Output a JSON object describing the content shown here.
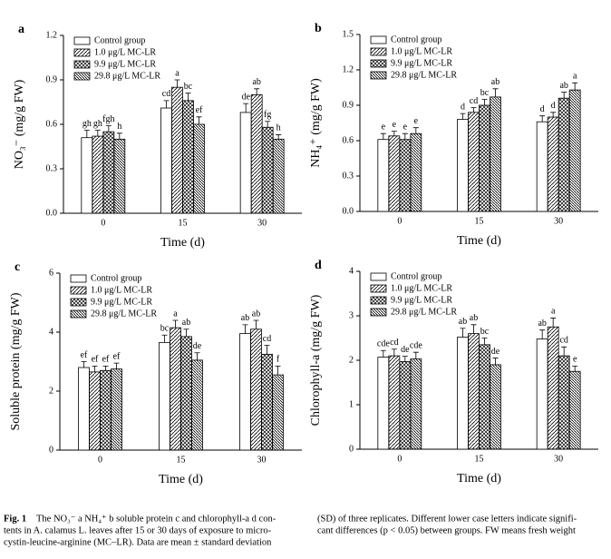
{
  "chart_data": [
    {
      "type": "bar",
      "panel": "a",
      "ylabel": "NO₃⁻ (mg/g FW)",
      "xlabel": "Time (d)",
      "categories": [
        "0",
        "15",
        "30"
      ],
      "ylim": [
        0,
        1.2
      ],
      "yticks": [
        {
          "value": 0,
          "label": "0.0"
        },
        0.3,
        0.6,
        0.9,
        1.2
      ],
      "series": [
        {
          "name": "Control group",
          "pattern": "none",
          "values": [
            0.51,
            0.71,
            0.68
          ],
          "errors": [
            0.05,
            0.05,
            0.06
          ],
          "letters": [
            "gh",
            "cd",
            "de"
          ]
        },
        {
          "name": "1.0 μg/L MC-LR",
          "pattern": "diagonal",
          "values": [
            0.52,
            0.85,
            0.8
          ],
          "errors": [
            0.04,
            0.05,
            0.04
          ],
          "letters": [
            "gh",
            "a",
            "ab"
          ]
        },
        {
          "name": "9.9 μg/L MC-LR",
          "pattern": "crosshatch",
          "values": [
            0.55,
            0.76,
            0.58
          ],
          "errors": [
            0.04,
            0.05,
            0.04
          ],
          "letters": [
            "fgh",
            "bc",
            "fg"
          ]
        },
        {
          "name": "29.8 μg/L MC-LR",
          "pattern": "back-diagonal",
          "values": [
            0.5,
            0.6,
            0.5
          ],
          "errors": [
            0.04,
            0.05,
            0.03
          ],
          "letters": [
            "h",
            "ef",
            "h"
          ]
        }
      ]
    },
    {
      "type": "bar",
      "panel": "b",
      "ylabel": "NH₄⁺ (mg/g FW)",
      "xlabel": "Time (d)",
      "categories": [
        "0",
        "15",
        "30"
      ],
      "ylim": [
        0,
        1.5
      ],
      "yticks": [
        {
          "value": 0,
          "label": "0.0"
        },
        0.3,
        0.6,
        0.9,
        1.2,
        1.5
      ],
      "series": [
        {
          "name": "Control group",
          "pattern": "none",
          "values": [
            0.61,
            0.78,
            0.76
          ],
          "errors": [
            0.05,
            0.05,
            0.05
          ],
          "letters": [
            "e",
            "d",
            "d"
          ]
        },
        {
          "name": "1.0 μg/L MC-LR",
          "pattern": "diagonal",
          "values": [
            0.64,
            0.84,
            0.8
          ],
          "errors": [
            0.04,
            0.04,
            0.04
          ],
          "letters": [
            "e",
            "cd",
            "d"
          ]
        },
        {
          "name": "9.9 μg/L MC-LR",
          "pattern": "crosshatch",
          "values": [
            0.61,
            0.9,
            0.96
          ],
          "errors": [
            0.05,
            0.05,
            0.05
          ],
          "letters": [
            "e",
            "bc",
            "ab"
          ]
        },
        {
          "name": "29.8 μg/L MC-LR",
          "pattern": "back-diagonal",
          "values": [
            0.66,
            0.97,
            1.03
          ],
          "errors": [
            0.05,
            0.07,
            0.06
          ],
          "letters": [
            "e",
            "ab",
            "a"
          ]
        }
      ]
    },
    {
      "type": "bar",
      "panel": "c",
      "ylabel": "Soluble protein (mg/g FW)",
      "xlabel": "Time (d)",
      "categories": [
        "0",
        "15",
        "30"
      ],
      "ylim": [
        0,
        6
      ],
      "yticks": [
        0,
        2,
        4,
        6
      ],
      "series": [
        {
          "name": "Control group",
          "pattern": "none",
          "values": [
            2.8,
            3.65,
            3.95
          ],
          "errors": [
            0.2,
            0.25,
            0.3
          ],
          "letters": [
            "ef",
            "bc",
            "ab"
          ]
        },
        {
          "name": "1.0 μg/L MC-LR",
          "pattern": "diagonal",
          "values": [
            2.65,
            4.15,
            4.1
          ],
          "errors": [
            0.2,
            0.25,
            0.3
          ],
          "letters": [
            "ef",
            "a",
            "ab"
          ]
        },
        {
          "name": "9.9 μg/L MC-LR",
          "pattern": "crosshatch",
          "values": [
            2.7,
            3.85,
            3.25
          ],
          "errors": [
            0.15,
            0.25,
            0.3
          ],
          "letters": [
            "ef",
            "ab",
            "cd"
          ]
        },
        {
          "name": "29.8 μg/L MC-LR",
          "pattern": "back-diagonal",
          "values": [
            2.75,
            3.05,
            2.55
          ],
          "errors": [
            0.2,
            0.25,
            0.3
          ],
          "letters": [
            "ef",
            "de",
            "f"
          ]
        }
      ]
    },
    {
      "type": "bar",
      "panel": "d",
      "ylabel": "Chlorophyll-a (mg/g FW)",
      "xlabel": "Time (d)",
      "categories": [
        "0",
        "15",
        "30"
      ],
      "ylim": [
        0,
        4
      ],
      "yticks": [
        0,
        1,
        2,
        3,
        4
      ],
      "series": [
        {
          "name": "Control group",
          "pattern": "none",
          "values": [
            2.07,
            2.52,
            2.48
          ],
          "errors": [
            0.15,
            0.2,
            0.2
          ],
          "letters": [
            "cde",
            "ab",
            "ab"
          ]
        },
        {
          "name": "1.0 μg/L MC-LR",
          "pattern": "diagonal",
          "values": [
            2.1,
            2.6,
            2.75
          ],
          "errors": [
            0.15,
            0.2,
            0.2
          ],
          "letters": [
            "cd",
            "ab",
            "a"
          ]
        },
        {
          "name": "9.9 μg/L MC-LR",
          "pattern": "crosshatch",
          "values": [
            1.97,
            2.35,
            2.1
          ],
          "errors": [
            0.12,
            0.15,
            0.2
          ],
          "letters": [
            "de",
            "bc",
            "cd"
          ]
        },
        {
          "name": "29.8 μg/L MC-LR",
          "pattern": "back-diagonal",
          "values": [
            2.03,
            1.9,
            1.75
          ],
          "errors": [
            0.15,
            0.15,
            0.12
          ],
          "letters": [
            "cde",
            "de",
            "e"
          ]
        }
      ]
    }
  ],
  "caption": {
    "label": "Fig. 1",
    "left_lines": [
      "The NO₃⁻ a NH₄⁺ b soluble protein c and chlorophyll-a d con-",
      "tents in A. calamus L. leaves after 15 or 30 days of exposure to micro-",
      "cystin-leucine-arginine (MC–LR). Data are mean ± standard deviation"
    ],
    "right_lines": [
      "(SD) of three replicates. Different lower case letters indicate signifi-",
      "cant differences (p < 0.05) between groups. FW means fresh weight"
    ]
  }
}
